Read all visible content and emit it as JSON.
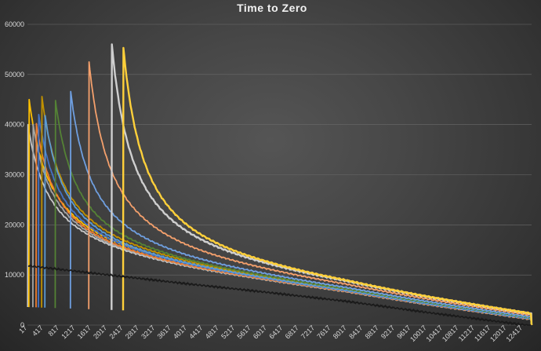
{
  "chart_data": {
    "type": "line",
    "title": "Time to Zero",
    "xlabel": "",
    "ylabel": "",
    "ylim": [
      0,
      60000
    ],
    "xlim": [
      17,
      12637
    ],
    "grid": "horizontal",
    "legend": "none",
    "y_ticks": [
      0,
      10000,
      20000,
      30000,
      40000,
      50000,
      60000
    ],
    "x_tick_labels": [
      "17",
      "417",
      "817",
      "1217",
      "1617",
      "2017",
      "2417",
      "2817",
      "3217",
      "3617",
      "4017",
      "4417",
      "4817",
      "5217",
      "5617",
      "6017",
      "6417",
      "6817",
      "7217",
      "7617",
      "8017",
      "8417",
      "8817",
      "9217",
      "9617",
      "10017",
      "10417",
      "10817",
      "11217",
      "11617",
      "12017",
      "12417"
    ],
    "baseline": {
      "x": [
        17,
        2000,
        4000,
        6000,
        8000,
        10000,
        12637
      ],
      "y": [
        12000,
        10200,
        8400,
        6700,
        4900,
        2700,
        0
      ]
    },
    "series": [
      {
        "color": "#c9c9c9",
        "start_x": 30,
        "peak": 40000
      },
      {
        "color": "#ffc000",
        "start_x": 60,
        "peak": 45000
      },
      {
        "color": "#a5a5a5",
        "start_x": 160,
        "peak": 40000
      },
      {
        "color": "#ed7d31",
        "start_x": 240,
        "peak": 40200
      },
      {
        "color": "#4472c4",
        "start_x": 300,
        "peak": 42000
      },
      {
        "color": "#bf9000",
        "start_x": 380,
        "peak": 45600
      },
      {
        "color": "#5b9bd5",
        "start_x": 460,
        "peak": 41800
      },
      {
        "color": "#548235",
        "start_x": 720,
        "peak": 44800
      },
      {
        "color": "#6f9fe0",
        "start_x": 1100,
        "peak": 46600
      },
      {
        "color": "#f4a06c",
        "start_x": 1560,
        "peak": 52500
      },
      {
        "color": "#cfcfcf",
        "start_x": 2130,
        "peak": 56000
      },
      {
        "color": "#ffd03a",
        "start_x": 2420,
        "peak": 55300
      }
    ]
  }
}
